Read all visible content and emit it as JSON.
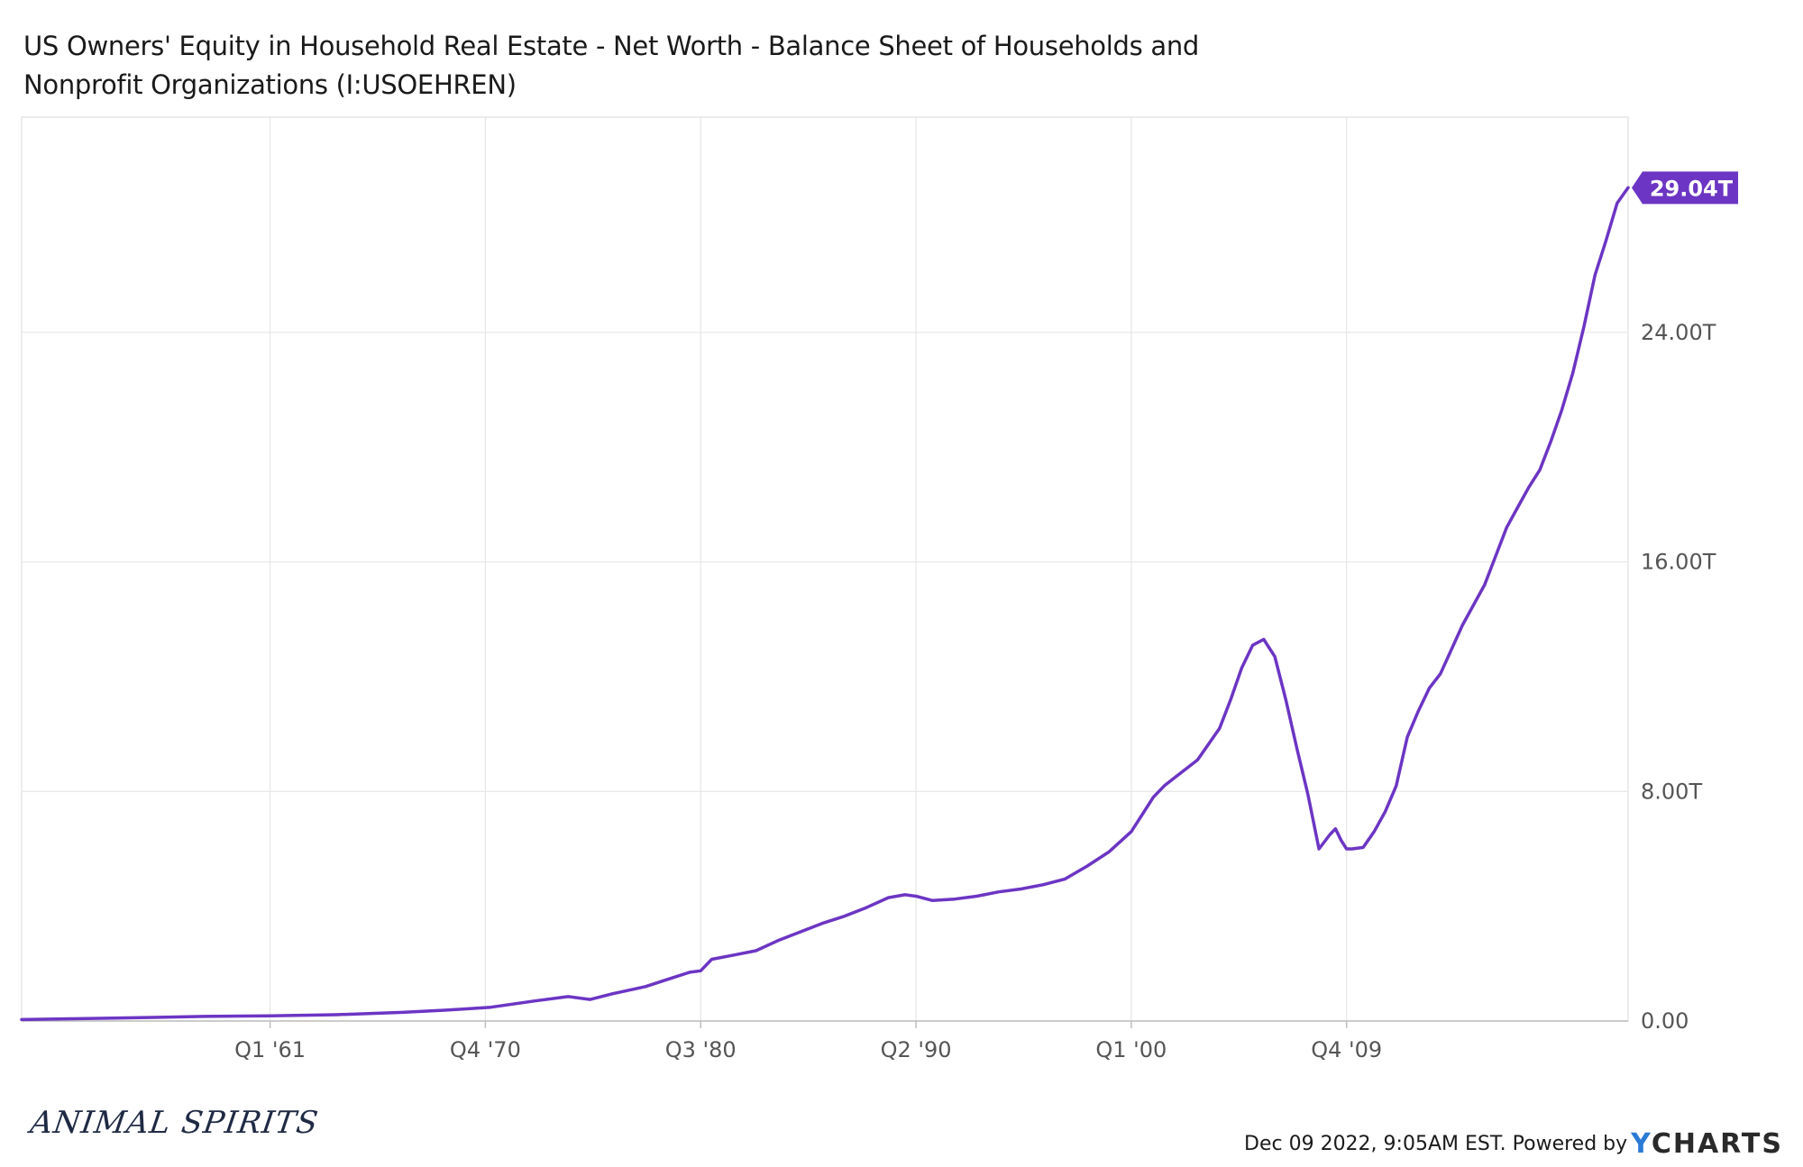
{
  "title_line1": "US Owners' Equity in Household Real Estate - Net Worth - Balance Sheet of Households and",
  "title_line2": "Nonprofit Organizations (I:USOEHREN)",
  "logo_text": "ANIMAL SPIRITS",
  "footer_text": "Dec 09 2022, 9:05AM EST. Powered by",
  "brand_prefix": "Y",
  "brand_rest": "CHARTS",
  "colors": {
    "series": "#6c35c4",
    "grid": "#e6e6e6",
    "axis": "#bfbfbf",
    "brand_accent": "#2b7bd6"
  },
  "chart_data": {
    "type": "line",
    "series_name": "US Owners' Equity in Household Real Estate",
    "x_ticks": [
      "Q1 '61",
      "Q4 '70",
      "Q3 '80",
      "Q2 '90",
      "Q1 '00",
      "Q4 '09"
    ],
    "x_tick_years": [
      1961.0,
      1970.75,
      1980.5,
      1990.25,
      2000.0,
      2009.75
    ],
    "y_ticks": [
      "0.00",
      "8.00T",
      "16.00T",
      "24.00T"
    ],
    "y_tick_values": [
      0,
      8,
      16,
      24
    ],
    "ylim": [
      0,
      31.5
    ],
    "xlim": [
      1949.75,
      2022.5
    ],
    "last_value_label": "29.04T",
    "unit": "trillions USD",
    "x": [
      1949.75,
      1953,
      1956,
      1958,
      1961,
      1964,
      1967,
      1969,
      1971,
      1973,
      1974.5,
      1975.5,
      1976.5,
      1978,
      1979,
      1980,
      1980.5,
      1981,
      1982,
      1983,
      1984,
      1985,
      1986,
      1987,
      1988,
      1989,
      1989.75,
      1990.25,
      1991,
      1992,
      1993,
      1994,
      1995,
      1996,
      1997,
      1998,
      1999,
      2000,
      2001,
      2001.5,
      2002,
      2003,
      2004,
      2004.5,
      2005,
      2005.5,
      2006,
      2006.5,
      2007,
      2007.5,
      2008,
      2008.5,
      2009,
      2009.25,
      2009.5,
      2009.75,
      2010,
      2010.5,
      2011,
      2011.5,
      2012,
      2012.5,
      2013,
      2013.5,
      2014,
      2015,
      2016,
      2017,
      2017.5,
      2018,
      2018.5,
      2019,
      2019.5,
      2020,
      2020.5,
      2021,
      2021.5,
      2022,
      2022.5
    ],
    "y": [
      0.05,
      0.09,
      0.13,
      0.16,
      0.18,
      0.22,
      0.3,
      0.38,
      0.48,
      0.7,
      0.85,
      0.75,
      0.95,
      1.2,
      1.45,
      1.7,
      1.75,
      2.15,
      2.3,
      2.45,
      2.8,
      3.1,
      3.4,
      3.65,
      3.95,
      4.3,
      4.4,
      4.35,
      4.2,
      4.25,
      4.35,
      4.5,
      4.6,
      4.75,
      4.95,
      5.4,
      5.9,
      6.6,
      7.8,
      8.2,
      8.5,
      9.1,
      10.2,
      11.2,
      12.3,
      13.1,
      13.3,
      12.7,
      11.2,
      9.5,
      7.9,
      6.0,
      6.5,
      6.7,
      6.3,
      6.0,
      6.0,
      6.05,
      6.6,
      7.3,
      8.2,
      9.9,
      10.8,
      11.6,
      12.1,
      13.8,
      15.2,
      17.2,
      17.9,
      18.6,
      19.2,
      20.2,
      21.3,
      22.6,
      24.2,
      26.0,
      27.2,
      28.5,
      29.04
    ]
  }
}
